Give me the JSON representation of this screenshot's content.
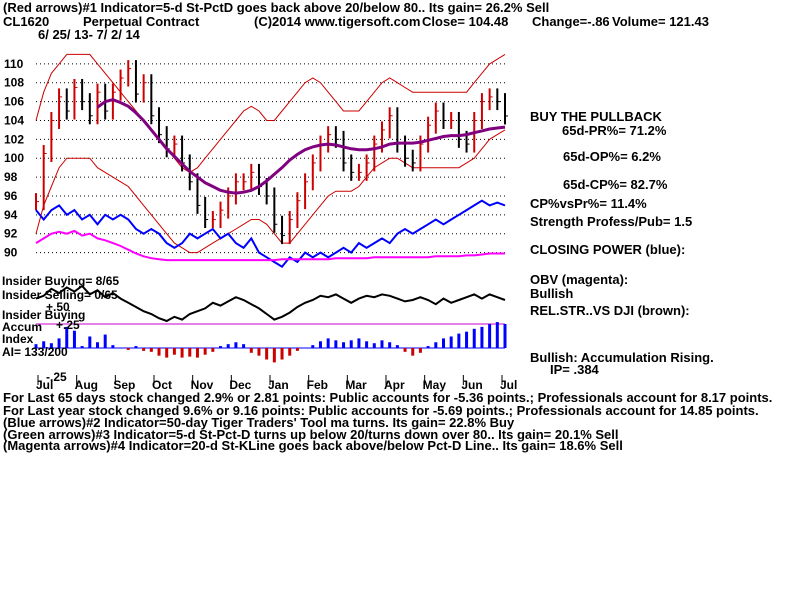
{
  "header": {
    "line1": "(Red arrows)#1 Indicator=5-d St-PctD goes back above 20/below 80.. Its gain= 26.2% Sell",
    "symbol": "CL1620",
    "name": "Perpetual Contract",
    "copyright": "(C)2014 www.tigersoft.com",
    "close": "Close=  104.48",
    "change": "Change=-.86",
    "volume": "Volume= 121.43",
    "date_range": "6/ 25/ 13- 7/ 2/ 14"
  },
  "right_panel": {
    "signal": "BUY THE PULLBACK",
    "pr": "65d-PR%= 71.2%",
    "op": "65d-OP%= 6.2%",
    "cp": "65d-CP%= 82.7%",
    "cpvspr": "CP%vsPr%= 11.4%",
    "strength": "Strength Profess/Pub= 1.5",
    "closing_power": "CLOSING POWER (blue):",
    "obv": "OBV (magenta):",
    "obv_state": "Bullish",
    "relstr": "REL.STR..VS DJI (brown):",
    "accum": "Bullish: Accumulation Rising.",
    "ip": "IP=  .384"
  },
  "left_labels": {
    "insider_buying_1": "Insider Buying= 8/65",
    "insider_selling": "Insider Selling= 0/65",
    "insider_buying_2": "Insider Buying",
    "accum": "Accum",
    "index": "Index",
    "ai": "AI= 133/200",
    "plus50": "+.50",
    "plus25": "+.25",
    "minus25": "-.25"
  },
  "footer": {
    "line1": "For Last 65 days stock changed  2.9% or  2.81 points:  Public accounts for -5.36 points.;  Professionals account for  8.17 points.",
    "line2": "For Last year stock changed  9.6% or  9.16 points:  Public accounts for -5.69 points.;  Professionals account for  14.85 points.",
    "line3": "(Blue arrows)#2 Indicator=50-day Tiger Traders' Tool ma turns. Its gain= 22.8% Buy",
    "line4": "(Green arrows)#3 Indicator=5-d St-Pct-D turns up below 20/turns down over 80.. Its gain= 20.1% Sell",
    "line5": "(Magenta arrows)#4 Indicator=20-d St-KLine goes back above/below Pct-D Line.. Its gain= 18.6% Sell"
  },
  "chart_data": {
    "type": "line",
    "y_ticks": [
      "110",
      "108",
      "106",
      "104",
      "102",
      "100",
      "98",
      "96",
      "94",
      "92",
      "90"
    ],
    "ylim": [
      89,
      112
    ],
    "months": [
      "Jul",
      "Aug",
      "Sep",
      "Oct",
      "Nov",
      "Dec",
      "Jan",
      "Feb",
      "Mar",
      "Apr",
      "May",
      "Jun",
      "Jul"
    ],
    "colors": {
      "price_up": "#cc0000",
      "price_down": "#000000",
      "band": "#cc0000",
      "ma50": "#800080",
      "closing_power": "#0000ff",
      "obv": "#ff00ff",
      "relstr": "#000000",
      "accum_pos": "#0000ff",
      "accum_neg": "#cc0000"
    },
    "close": [
      95.4,
      100.5,
      104.0,
      106.5,
      105.0,
      107.5,
      106.0,
      104.5,
      107.0,
      105.0,
      107.0,
      108.5,
      109.5,
      106.8,
      108.0,
      104.5,
      102.5,
      101.0,
      101.5,
      99.5,
      97.5,
      95.0,
      93.5,
      93.5,
      94.5,
      96.0,
      97.5,
      97.5,
      98.5,
      97.0,
      96.0,
      93.0,
      91.8,
      93.5,
      95.5,
      97.5,
      99.5,
      101.5,
      102.5,
      102.0,
      99.5,
      98.5,
      98.5,
      99.5,
      101.5,
      103.0,
      104.5,
      101.5,
      100.0,
      99.5,
      101.5,
      103.5,
      105.0,
      104.0,
      104.0,
      102.0,
      101.5,
      104.0,
      106.0,
      106.5,
      106.0,
      104.48
    ],
    "ma50": [
      null,
      null,
      null,
      null,
      null,
      null,
      null,
      null,
      105.4,
      106.0,
      106.2,
      105.9,
      105.5,
      104.8,
      104.0,
      103.0,
      102.0,
      101.0,
      100.2,
      99.4,
      98.6,
      98.0,
      97.4,
      97.0,
      96.6,
      96.4,
      96.3,
      96.4,
      96.6,
      97.0,
      97.6,
      98.3,
      99.0,
      99.8,
      100.4,
      100.9,
      101.2,
      101.4,
      101.5,
      101.4,
      101.2,
      101.0,
      100.9,
      100.9,
      101.0,
      101.2,
      101.5,
      101.6,
      101.6,
      101.6,
      101.7,
      101.9,
      102.1,
      102.3,
      102.4,
      102.4,
      102.5,
      102.7,
      102.9,
      103.1,
      103.2,
      103.3
    ],
    "upper_band": [
      104,
      107,
      109,
      110,
      111,
      111,
      111,
      111,
      110,
      109,
      108,
      107,
      106,
      105,
      104,
      103,
      102,
      101,
      100,
      99,
      98.5,
      99,
      100,
      101,
      102,
      103,
      104,
      105,
      105.5,
      105,
      104,
      104,
      105,
      106,
      107,
      108,
      108.5,
      108,
      107,
      106,
      105,
      105,
      105,
      106,
      107,
      108,
      108.5,
      108,
      107.5,
      107,
      107,
      107,
      107,
      107,
      107,
      107,
      107,
      108,
      109,
      110,
      110.5,
      111
    ],
    "lower_band": [
      92,
      95,
      97,
      99,
      100,
      100,
      100,
      100,
      99,
      98.5,
      98,
      97.5,
      97,
      96,
      95,
      94,
      93,
      92,
      91,
      90.5,
      90,
      90,
      90.5,
      91,
      91.5,
      92,
      92.5,
      93,
      93.5,
      93.5,
      93,
      92,
      91,
      91,
      92,
      93,
      94,
      95,
      96,
      96.5,
      96.5,
      96.5,
      97,
      98,
      99,
      99.5,
      100,
      100,
      99.5,
      99,
      99,
      99,
      99,
      99,
      99,
      99,
      99.5,
      100,
      101,
      102,
      102.5,
      103
    ],
    "closing_power": [
      94.5,
      93.5,
      94.5,
      95,
      94,
      94.5,
      93.5,
      94,
      93,
      94,
      93.5,
      94,
      93.5,
      92.5,
      92,
      92.5,
      92,
      91,
      90.5,
      91,
      92,
      91.5,
      92,
      92.5,
      91.5,
      92,
      91,
      90.5,
      91.5,
      90,
      89.5,
      89,
      88.5,
      89.5,
      89,
      90,
      89.5,
      90,
      89.5,
      90,
      90.5,
      90,
      91,
      90.5,
      91,
      91.5,
      91,
      92,
      92.5,
      92,
      92.5,
      93,
      93.5,
      93,
      93.5,
      94,
      94.5,
      95,
      95.5,
      95,
      95.3,
      95
    ],
    "obv": [
      91.0,
      91.5,
      92.0,
      92.2,
      92.0,
      92.3,
      91.8,
      92.0,
      91.5,
      91.3,
      91.0,
      90.7,
      90.3,
      89.9,
      89.6,
      89.4,
      89.3,
      89.2,
      89.2,
      89.2,
      89.2,
      89.2,
      89.2,
      89.2,
      89.2,
      89.2,
      89.2,
      89.2,
      89.2,
      89.2,
      89.2,
      89.2,
      89.3,
      89.3,
      89.3,
      89.3,
      89.3,
      89.3,
      89.3,
      89.4,
      89.4,
      89.4,
      89.4,
      89.4,
      89.5,
      89.5,
      89.5,
      89.5,
      89.5,
      89.5,
      89.5,
      89.5,
      89.6,
      89.6,
      89.6,
      89.6,
      89.7,
      89.7,
      89.8,
      89.9,
      89.9,
      89.9
    ],
    "relstr": [
      0.1,
      0.3,
      0.8,
      0.5,
      0.9,
      0.6,
      1.0,
      0.4,
      0.7,
      0.2,
      0.5,
      0.1,
      -0.2,
      -0.5,
      -0.8,
      -1.0,
      -1.3,
      -1.5,
      -1.2,
      -1.4,
      -1.0,
      -0.8,
      -0.6,
      -0.2,
      -0.4,
      -0.1,
      0.2,
      0.0,
      -0.3,
      -0.6,
      -1.0,
      -1.4,
      -1.2,
      -0.9,
      -0.5,
      -0.2,
      0.0,
      0.3,
      0.2,
      0.4,
      0.1,
      -0.2,
      0.1,
      0.3,
      0.2,
      0.4,
      0.3,
      0.1,
      -0.1,
      0.0,
      0.2,
      0.0,
      -0.3,
      0.1,
      -0.2,
      0.0,
      0.2,
      0.4,
      0.1,
      0.4,
      0.2,
      0.0
    ],
    "accum": [
      0.04,
      0.07,
      0.05,
      0.1,
      0.22,
      0.18,
      0.02,
      0.12,
      0.06,
      0.14,
      0.03,
      0.0,
      -0.02,
      0.02,
      -0.03,
      -0.04,
      -0.08,
      -0.1,
      -0.07,
      -0.1,
      -0.09,
      -0.1,
      -0.07,
      -0.04,
      0.02,
      0.04,
      0.06,
      0.04,
      -0.05,
      -0.08,
      -0.12,
      -0.15,
      -0.12,
      -0.08,
      -0.03,
      0.0,
      0.03,
      0.07,
      0.1,
      0.08,
      0.06,
      0.08,
      0.1,
      0.07,
      0.05,
      0.08,
      0.06,
      0.03,
      -0.04,
      -0.08,
      -0.05,
      0.02,
      0.06,
      0.1,
      0.12,
      0.15,
      0.17,
      0.2,
      0.22,
      0.25,
      0.27,
      0.25
    ],
    "accum_ylim": [
      -0.25,
      0.5
    ]
  }
}
